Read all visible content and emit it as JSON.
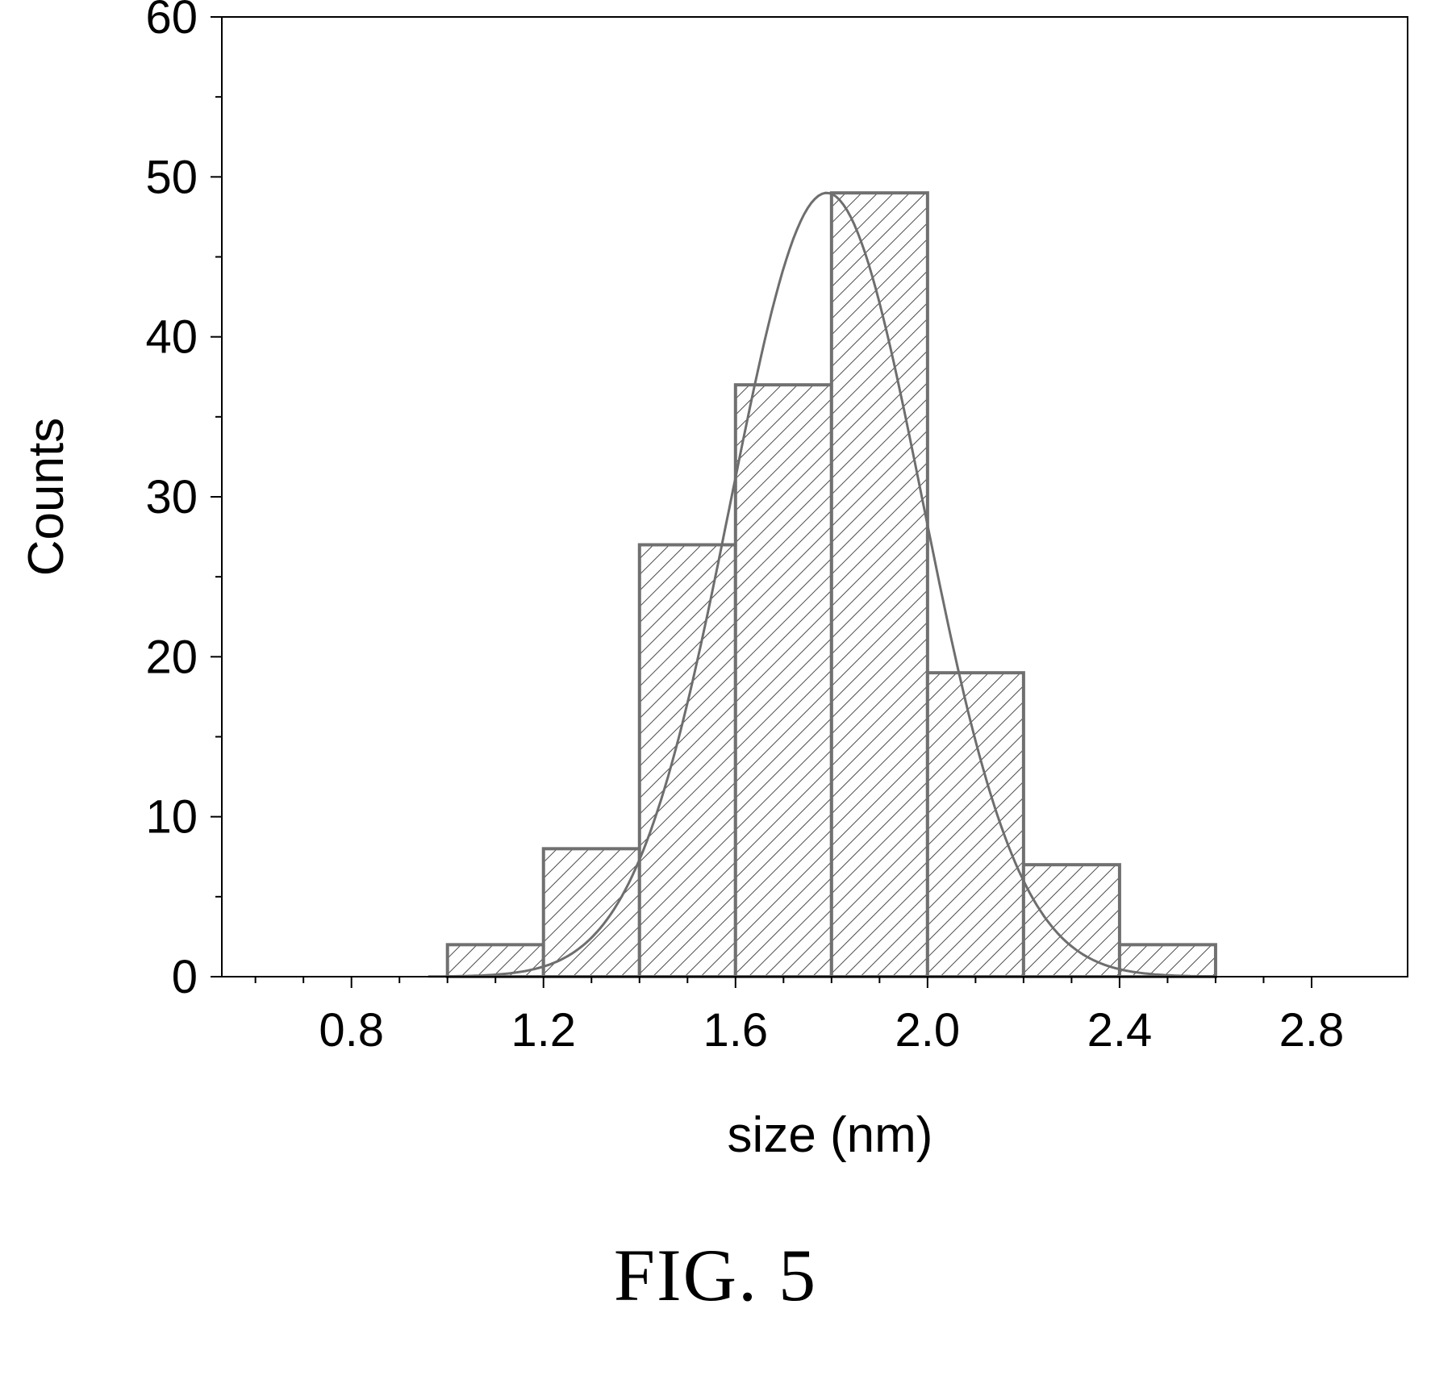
{
  "chart_data": {
    "type": "bar",
    "subtype": "histogram",
    "xlabel": "size (nm)",
    "ylabel": "Counts",
    "xlim": [
      0.53,
      3.0
    ],
    "ylim": [
      0,
      60
    ],
    "x_ticks": [
      0.8,
      1.2,
      1.6,
      2.0,
      2.4,
      2.8
    ],
    "x_tick_labels": [
      "0.8",
      "1.2",
      "1.6",
      "2.0",
      "2.4",
      "2.8"
    ],
    "y_ticks": [
      0,
      10,
      20,
      30,
      40,
      50,
      60
    ],
    "y_tick_labels": [
      "0",
      "10",
      "20",
      "30",
      "40",
      "50",
      "60"
    ],
    "grid": false,
    "bins": [
      {
        "x0": 1.0,
        "x1": 1.2,
        "count": 2
      },
      {
        "x0": 1.2,
        "x1": 1.4,
        "count": 8
      },
      {
        "x0": 1.4,
        "x1": 1.6,
        "count": 27
      },
      {
        "x0": 1.6,
        "x1": 1.8,
        "count": 37
      },
      {
        "x0": 1.8,
        "x1": 2.0,
        "count": 49
      },
      {
        "x0": 2.0,
        "x1": 2.2,
        "count": 19
      },
      {
        "x0": 2.2,
        "x1": 2.4,
        "count": 7
      },
      {
        "x0": 2.4,
        "x1": 2.6,
        "count": 2
      }
    ],
    "fit_curve": {
      "type": "gaussian",
      "amplitude": 49,
      "center": 1.79,
      "sigma": 0.2,
      "x_range": [
        0.96,
        2.6
      ]
    },
    "colors": {
      "bar_stroke": "#707070",
      "hatch": "#4a4a4a",
      "curve": "#6e6e6e",
      "axis": "#000000"
    }
  },
  "caption": "FIG. 5"
}
